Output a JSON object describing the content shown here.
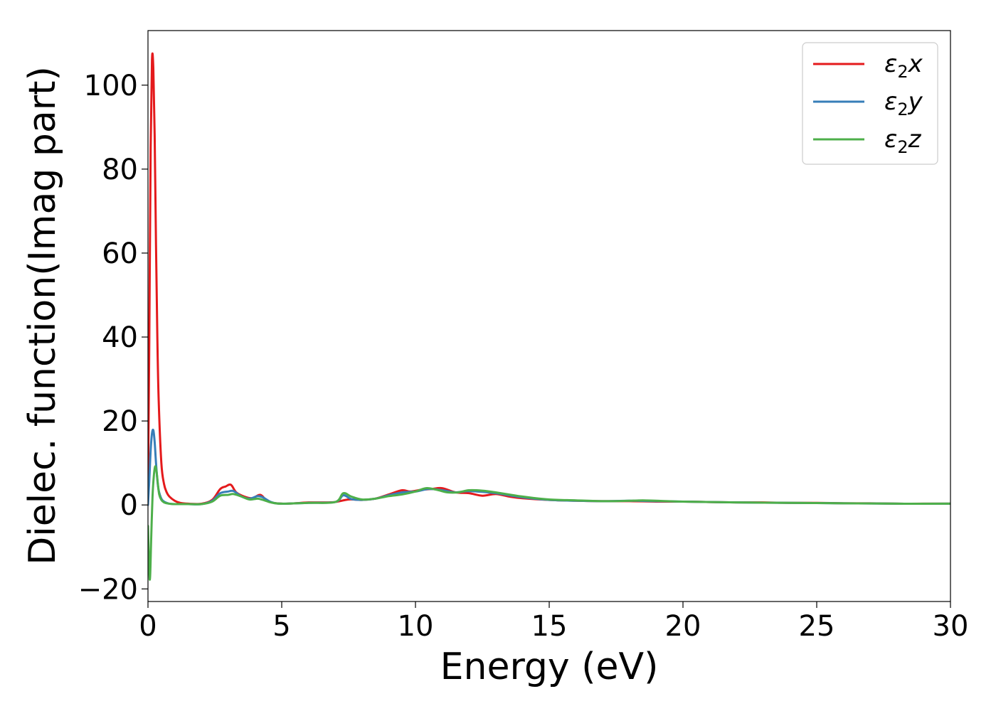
{
  "chart_data": {
    "type": "line",
    "title": "",
    "xlabel": "Energy (eV)",
    "ylabel": "Dielec. function(Imag part)",
    "xlim": [
      0,
      30
    ],
    "ylim": [
      -23,
      113
    ],
    "xticks": [
      0,
      5,
      10,
      15,
      20,
      25,
      30
    ],
    "yticks": [
      -20,
      0,
      20,
      40,
      60,
      80,
      100
    ],
    "xtick_labels": [
      "0",
      "5",
      "10",
      "15",
      "20",
      "25",
      "30"
    ],
    "ytick_labels": [
      "−20",
      "0",
      "20",
      "40",
      "60",
      "80",
      "100"
    ],
    "grid": false,
    "legend_position": "top-right",
    "series": [
      {
        "name": "ε₂x",
        "name_main": "ε",
        "name_sub": "2",
        "name_suffix": "x",
        "color": "#e41a1c",
        "x": [
          0,
          0.05,
          0.1,
          0.15,
          0.2,
          0.25,
          0.3,
          0.35,
          0.4,
          0.5,
          0.6,
          0.7,
          0.8,
          1.0,
          1.2,
          1.5,
          2.0,
          2.4,
          2.7,
          2.9,
          3.1,
          3.3,
          3.6,
          3.9,
          4.2,
          4.5,
          5.0,
          5.5,
          6.0,
          6.5,
          7.0,
          7.5,
          8.0,
          8.5,
          9.0,
          9.5,
          9.8,
          10.2,
          10.6,
          11.0,
          11.5,
          12.0,
          12.5,
          13.0,
          13.5,
          14.0,
          15.0,
          16.0,
          17.0,
          18.0,
          19.0,
          20.0,
          21.0,
          22.0,
          23.0,
          24.0,
          25.0,
          26.0,
          27.0,
          28.0,
          29.0,
          30.0
        ],
        "y": [
          2,
          40,
          85,
          106,
          104,
          88,
          62,
          40,
          25,
          10,
          5,
          3,
          2,
          1,
          0.5,
          0.3,
          0.3,
          1.2,
          3.8,
          4.4,
          4.8,
          3.0,
          2.0,
          1.6,
          2.4,
          0.8,
          0.3,
          0.4,
          0.6,
          0.6,
          0.7,
          1.3,
          1.2,
          1.5,
          2.5,
          3.5,
          3.2,
          3.6,
          3.8,
          4.0,
          3.0,
          2.8,
          2.2,
          2.6,
          2.0,
          1.6,
          1.2,
          1.0,
          0.9,
          0.9,
          0.8,
          0.8,
          0.7,
          0.6,
          0.6,
          0.5,
          0.5,
          0.4,
          0.4,
          0.3,
          0.3,
          0.3
        ]
      },
      {
        "name": "ε₂y",
        "name_main": "ε",
        "name_sub": "2",
        "name_suffix": "y",
        "color": "#377eb8",
        "x": [
          0,
          0.05,
          0.1,
          0.15,
          0.2,
          0.25,
          0.3,
          0.35,
          0.4,
          0.5,
          0.6,
          0.7,
          0.8,
          1.0,
          1.5,
          2.0,
          2.4,
          2.7,
          3.0,
          3.2,
          3.5,
          3.8,
          4.1,
          4.3,
          4.6,
          5.0,
          6.0,
          7.0,
          7.3,
          7.6,
          8.0,
          8.5,
          9.0,
          9.5,
          10.0,
          10.5,
          11.0,
          11.5,
          12.0,
          13.0,
          14.0,
          15.0,
          16.0,
          17.0,
          18.0,
          19.0,
          20.0,
          22.0,
          24.0,
          26.0,
          28.0,
          30.0
        ],
        "y": [
          0,
          6,
          13,
          17,
          17.8,
          15,
          10,
          6,
          3.5,
          1.5,
          0.8,
          0.5,
          0.3,
          0.2,
          0.2,
          0.2,
          1.0,
          2.8,
          3.2,
          3.3,
          2.0,
          1.5,
          2.1,
          1.8,
          0.7,
          0.3,
          0.5,
          0.7,
          2.3,
          1.4,
          1.2,
          1.5,
          2.3,
          3.0,
          3.2,
          3.8,
          3.5,
          3.0,
          3.3,
          2.8,
          1.8,
          1.2,
          1.0,
          0.9,
          1.0,
          0.9,
          0.8,
          0.6,
          0.5,
          0.4,
          0.3,
          0.3
        ]
      },
      {
        "name": "ε₂z",
        "name_main": "ε",
        "name_sub": "2",
        "name_suffix": "z",
        "color": "#4daf4a",
        "x": [
          0,
          0.05,
          0.08,
          0.12,
          0.17,
          0.22,
          0.27,
          0.32,
          0.37,
          0.42,
          0.5,
          0.6,
          0.7,
          0.8,
          1.0,
          1.5,
          2.0,
          2.4,
          2.7,
          3.0,
          3.2,
          3.5,
          3.8,
          4.1,
          4.3,
          4.6,
          5.0,
          6.0,
          7.0,
          7.3,
          7.6,
          8.0,
          8.5,
          9.0,
          9.5,
          10.0,
          10.4,
          10.8,
          11.2,
          11.6,
          12.0,
          12.5,
          13.0,
          14.0,
          15.0,
          16.0,
          17.0,
          18.0,
          18.5,
          19.0,
          20.0,
          22.0,
          24.0,
          26.0,
          28.0,
          30.0
        ],
        "y": [
          -5,
          -16,
          -17,
          -8,
          2,
          7,
          9.2,
          8,
          5,
          2.5,
          1.2,
          0.6,
          0.4,
          0.3,
          0.2,
          0.2,
          0.2,
          0.8,
          2.2,
          2.4,
          2.6,
          2.0,
          1.3,
          1.5,
          1.2,
          0.6,
          0.3,
          0.5,
          0.7,
          2.8,
          2.0,
          1.3,
          1.5,
          2.1,
          2.5,
          3.2,
          4.0,
          3.6,
          3.0,
          3.0,
          3.5,
          3.4,
          3.0,
          2.0,
          1.3,
          1.1,
          0.9,
          1.0,
          1.1,
          1.0,
          0.8,
          0.6,
          0.5,
          0.4,
          0.3,
          0.3
        ]
      }
    ]
  }
}
